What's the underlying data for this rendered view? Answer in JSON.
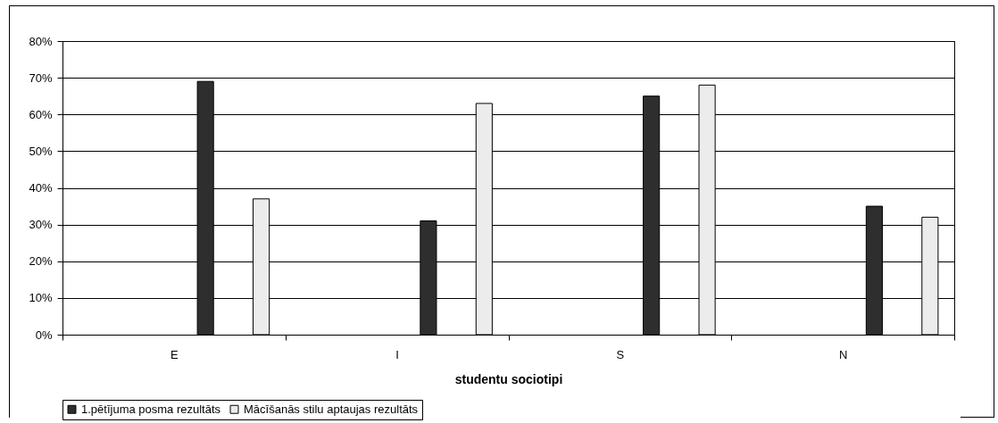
{
  "chart_data": {
    "type": "bar",
    "xlabel": "studentu sociotipi",
    "categories": [
      "E",
      "I",
      "S",
      "N"
    ],
    "series": [
      {
        "name": "1.pētījuma posma rezultāts",
        "color": "#2e2e2e",
        "values": [
          69,
          31,
          65,
          35
        ]
      },
      {
        "name": "Mācīšanās stilu aptaujas rezultāts",
        "color": "#ececec",
        "values": [
          37,
          63,
          68,
          32
        ]
      }
    ],
    "ylim": [
      0,
      80
    ],
    "yticks": [
      {
        "value": 0,
        "label": "0%"
      },
      {
        "value": 10,
        "label": "10%"
      },
      {
        "value": 20,
        "label": "20%"
      },
      {
        "value": 30,
        "label": "30%"
      },
      {
        "value": 40,
        "label": "40%"
      },
      {
        "value": 50,
        "label": "50%"
      },
      {
        "value": 60,
        "label": "60%"
      },
      {
        "value": 70,
        "label": "70%"
      },
      {
        "value": 80,
        "label": "80%"
      }
    ],
    "grid": "y",
    "legend": "bottom"
  }
}
